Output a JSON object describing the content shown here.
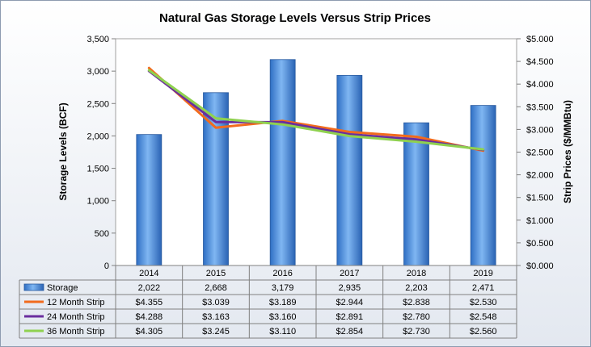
{
  "chart_data": {
    "type": "bar",
    "title": "Natural Gas Storage Levels Versus Strip Prices",
    "categories": [
      "2014",
      "2015",
      "2016",
      "2017",
      "2018",
      "2019"
    ],
    "y_left": {
      "label": "Storage Levels (BCF)",
      "min": 0,
      "max": 3500,
      "step": 500,
      "tick_labels": [
        "0",
        "500",
        "1,000",
        "1,500",
        "2,000",
        "2,500",
        "3,000",
        "3,500"
      ]
    },
    "y_right": {
      "label": "Strip Prices ($/MMBtu)",
      "min": 0,
      "max": 5,
      "step": 0.5,
      "tick_labels": [
        "$0.000",
        "$0.500",
        "$1.000",
        "$1.500",
        "$2.000",
        "$2.500",
        "$3.000",
        "$3.500",
        "$4.000",
        "$4.500",
        "$5.000"
      ]
    },
    "grid": false,
    "legend": "data-table",
    "series": [
      {
        "name": "Storage",
        "type": "bar",
        "axis": "left",
        "color": "#4f8fdb",
        "values": [
          2022,
          2668,
          3179,
          2935,
          2203,
          2471
        ],
        "labels": [
          "2,022",
          "2,668",
          "3,179",
          "2,935",
          "2,203",
          "2,471"
        ]
      },
      {
        "name": "12 Month Strip",
        "type": "line",
        "axis": "right",
        "color": "#f26b1d",
        "values": [
          4.355,
          3.039,
          3.189,
          2.944,
          2.838,
          2.53
        ],
        "labels": [
          "$4.355",
          "$3.039",
          "$3.189",
          "$2.944",
          "$2.838",
          "$2.530"
        ]
      },
      {
        "name": "24 Month Strip",
        "type": "line",
        "axis": "right",
        "color": "#6a2d9e",
        "values": [
          4.288,
          3.163,
          3.16,
          2.891,
          2.78,
          2.548
        ],
        "labels": [
          "$4.288",
          "$3.163",
          "$3.160",
          "$2.891",
          "$2.780",
          "$2.548"
        ]
      },
      {
        "name": "36 Month Strip",
        "type": "line",
        "axis": "right",
        "color": "#8fd14f",
        "values": [
          4.305,
          3.245,
          3.11,
          2.854,
          2.73,
          2.56
        ],
        "labels": [
          "$4.305",
          "$3.245",
          "$3.110",
          "$2.854",
          "$2.730",
          "$2.560"
        ]
      }
    ]
  }
}
